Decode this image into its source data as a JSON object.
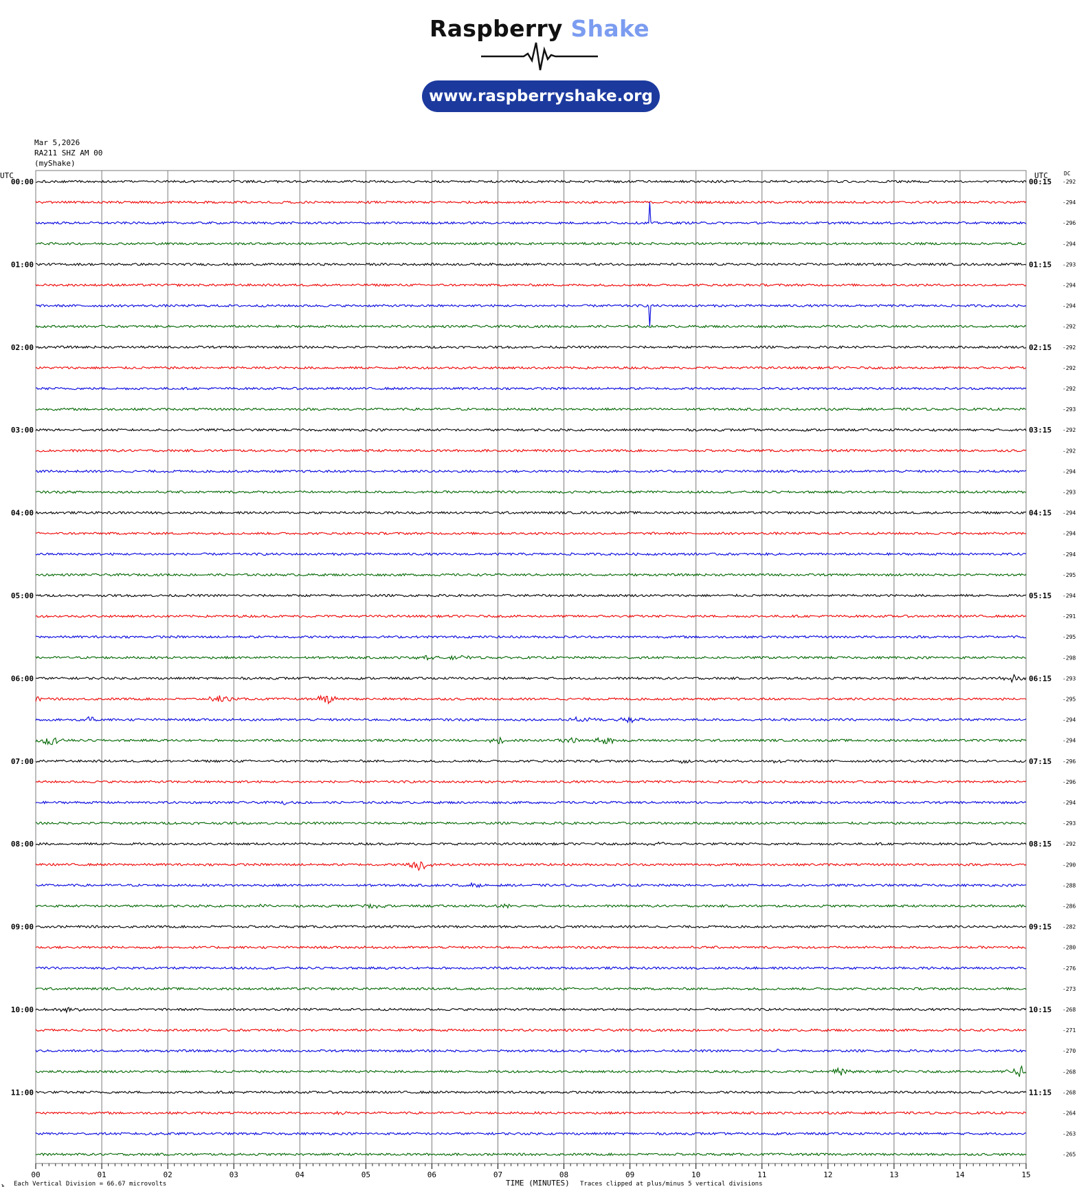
{
  "header": {
    "brand_part1": "Raspberry",
    "brand_part2": "Shake",
    "url": "www.raspberryshake.org"
  },
  "meta": {
    "date": "Mar 5,2026",
    "station": "RA211 SHZ AM 00",
    "source": "(myShake)"
  },
  "labels": {
    "left_tz": "UTC",
    "right_tz": "UTC",
    "dc": "DC",
    "xlabel": "TIME (MINUTES)",
    "division_note": "Each Vertical Division =   66.67 microvolts",
    "clip_note": "Traces clipped at plus/minus 5 vertical divisions",
    "corner_mark": "ъ"
  },
  "colors": {
    "trace_cycle": [
      "#000000",
      "#ee0000",
      "#0000dd",
      "#006600"
    ],
    "grid": "#7a7a7a",
    "brand_dark": "#111111",
    "brand_light": "#7b9cf0",
    "pill": "#1c3a9e"
  },
  "chart_data": {
    "type": "line",
    "title": "",
    "xlabel": "TIME (MINUTES)",
    "ylabel": "",
    "x_ticks": [
      "00",
      "01",
      "02",
      "03",
      "04",
      "05",
      "06",
      "07",
      "08",
      "09",
      "10",
      "11",
      "12",
      "13",
      "14",
      "15"
    ],
    "xlim": [
      0,
      15
    ],
    "minutes_per_line": 15,
    "row_count": 48,
    "left_hour_labels": [
      "00:00",
      "01:00",
      "02:00",
      "03:00",
      "04:00",
      "05:00",
      "06:00",
      "07:00",
      "08:00",
      "09:00",
      "10:00",
      "11:00"
    ],
    "right_hour_labels": [
      "00:15",
      "01:15",
      "02:15",
      "03:15",
      "04:15",
      "05:15",
      "06:15",
      "07:15",
      "08:15",
      "09:15",
      "10:15",
      "11:15"
    ],
    "dc_offsets": [
      "-292",
      "-294",
      "-296",
      "-294",
      "-293",
      "-294",
      "-294",
      "-292",
      "-292",
      "-292",
      "-292",
      "-293",
      "-292",
      "-292",
      "-294",
      "-293",
      "-294",
      "-294",
      "-294",
      "-295",
      "-294",
      "-291",
      "-295",
      "-298",
      "-293",
      "-295",
      "-294",
      "-294",
      "-296",
      "-296",
      "-294",
      "-293",
      "-292",
      "-290",
      "-288",
      "-286",
      "-282",
      "-280",
      "-276",
      "-273",
      "-268",
      "-271",
      "-270",
      "-268",
      "-268",
      "-264",
      "-263",
      "-265"
    ],
    "events": [
      {
        "row": 2,
        "minute": 9.3,
        "amplitude": 5,
        "shape": "spike"
      },
      {
        "row": 6,
        "minute": 9.3,
        "amplitude": -5,
        "shape": "spike"
      },
      {
        "row": 23,
        "minute": 5.9,
        "amplitude": 0.4
      },
      {
        "row": 23,
        "minute": 6.4,
        "amplitude": 0.5
      },
      {
        "row": 24,
        "minute": 14.8,
        "amplitude": 0.8
      },
      {
        "row": 25,
        "minute": 0.0,
        "amplitude": 0.7
      },
      {
        "row": 25,
        "minute": 2.8,
        "amplitude": 0.9
      },
      {
        "row": 25,
        "minute": 4.4,
        "amplitude": 1.1
      },
      {
        "row": 26,
        "minute": 0.8,
        "amplitude": 0.6
      },
      {
        "row": 26,
        "minute": 8.3,
        "amplitude": 0.7
      },
      {
        "row": 26,
        "minute": 9.0,
        "amplitude": 0.6
      },
      {
        "row": 27,
        "minute": 0.2,
        "amplitude": 1.1
      },
      {
        "row": 27,
        "minute": 7.0,
        "amplitude": 0.8
      },
      {
        "row": 27,
        "minute": 8.1,
        "amplitude": 0.9
      },
      {
        "row": 27,
        "minute": 8.6,
        "amplitude": 1.0
      },
      {
        "row": 28,
        "minute": 9.8,
        "amplitude": 0.5
      },
      {
        "row": 28,
        "minute": 11.3,
        "amplitude": 0.4
      },
      {
        "row": 30,
        "minute": 3.8,
        "amplitude": 0.4
      },
      {
        "row": 32,
        "minute": 9.4,
        "amplitude": 0.5
      },
      {
        "row": 33,
        "minute": 5.8,
        "amplitude": 1.4
      },
      {
        "row": 34,
        "minute": 6.6,
        "amplitude": 0.4
      },
      {
        "row": 35,
        "minute": 3.4,
        "amplitude": 0.4
      },
      {
        "row": 35,
        "minute": 5.1,
        "amplitude": 0.6
      },
      {
        "row": 35,
        "minute": 7.1,
        "amplitude": 0.5
      },
      {
        "row": 40,
        "minute": 0.5,
        "amplitude": 0.5
      },
      {
        "row": 42,
        "minute": 11.2,
        "amplitude": 0.4
      },
      {
        "row": 43,
        "minute": 12.2,
        "amplitude": 0.8
      },
      {
        "row": 43,
        "minute": 14.9,
        "amplitude": 1.5
      },
      {
        "row": 45,
        "minute": 4.7,
        "amplitude": 0.3
      },
      {
        "row": 46,
        "minute": 1.8,
        "amplitude": 0.4
      }
    ]
  }
}
